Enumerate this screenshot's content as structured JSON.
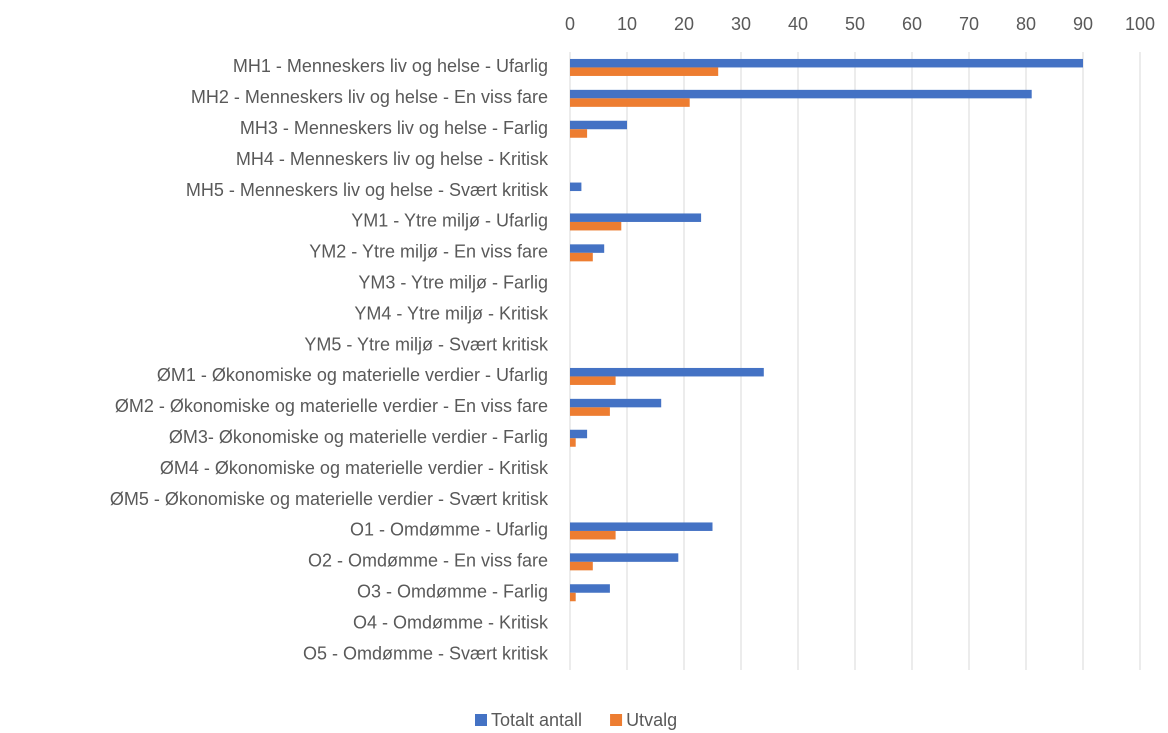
{
  "chart_data": {
    "type": "hbar",
    "categories": [
      "MH1 - Menneskers liv og helse - Ufarlig",
      "MH2 - Menneskers liv og helse - En viss fare",
      "MH3 - Menneskers liv og helse - Farlig",
      "MH4 - Menneskers liv og helse - Kritisk",
      "MH5 - Menneskers liv og helse - Svært kritisk",
      "YM1 - Ytre miljø - Ufarlig",
      "YM2 - Ytre miljø - En viss fare",
      "YM3 - Ytre miljø - Farlig",
      "YM4 - Ytre miljø - Kritisk",
      "YM5 - Ytre miljø - Svært kritisk",
      "ØM1 - Økonomiske og materielle verdier - Ufarlig",
      "ØM2 - Økonomiske og materielle verdier - En viss fare",
      "ØM3- Økonomiske og materielle verdier - Farlig",
      "ØM4 - Økonomiske og materielle verdier - Kritisk",
      "ØM5 - Økonomiske og materielle verdier - Svært kritisk",
      "O1 - Omdømme - Ufarlig",
      "O2 - Omdømme - En viss fare",
      "O3 - Omdømme - Farlig",
      "O4 - Omdømme - Kritisk",
      "O5 - Omdømme - Svært kritisk"
    ],
    "series": [
      {
        "name": "Totalt antall",
        "color": "#4472c4",
        "values": [
          90,
          81,
          10,
          0,
          2,
          23,
          6,
          0,
          0,
          0,
          34,
          16,
          3,
          0,
          0,
          25,
          19,
          7,
          0,
          0
        ]
      },
      {
        "name": "Utvalg",
        "color": "#ed7d31",
        "values": [
          26,
          21,
          3,
          0,
          0,
          9,
          4,
          0,
          0,
          0,
          8,
          7,
          1,
          0,
          0,
          8,
          4,
          1,
          0,
          0
        ]
      }
    ],
    "xlim": [
      0,
      100
    ],
    "xticks": [
      0,
      10,
      20,
      30,
      40,
      50,
      60,
      70,
      80,
      90,
      100
    ],
    "grid": true,
    "legend": "bottom"
  }
}
